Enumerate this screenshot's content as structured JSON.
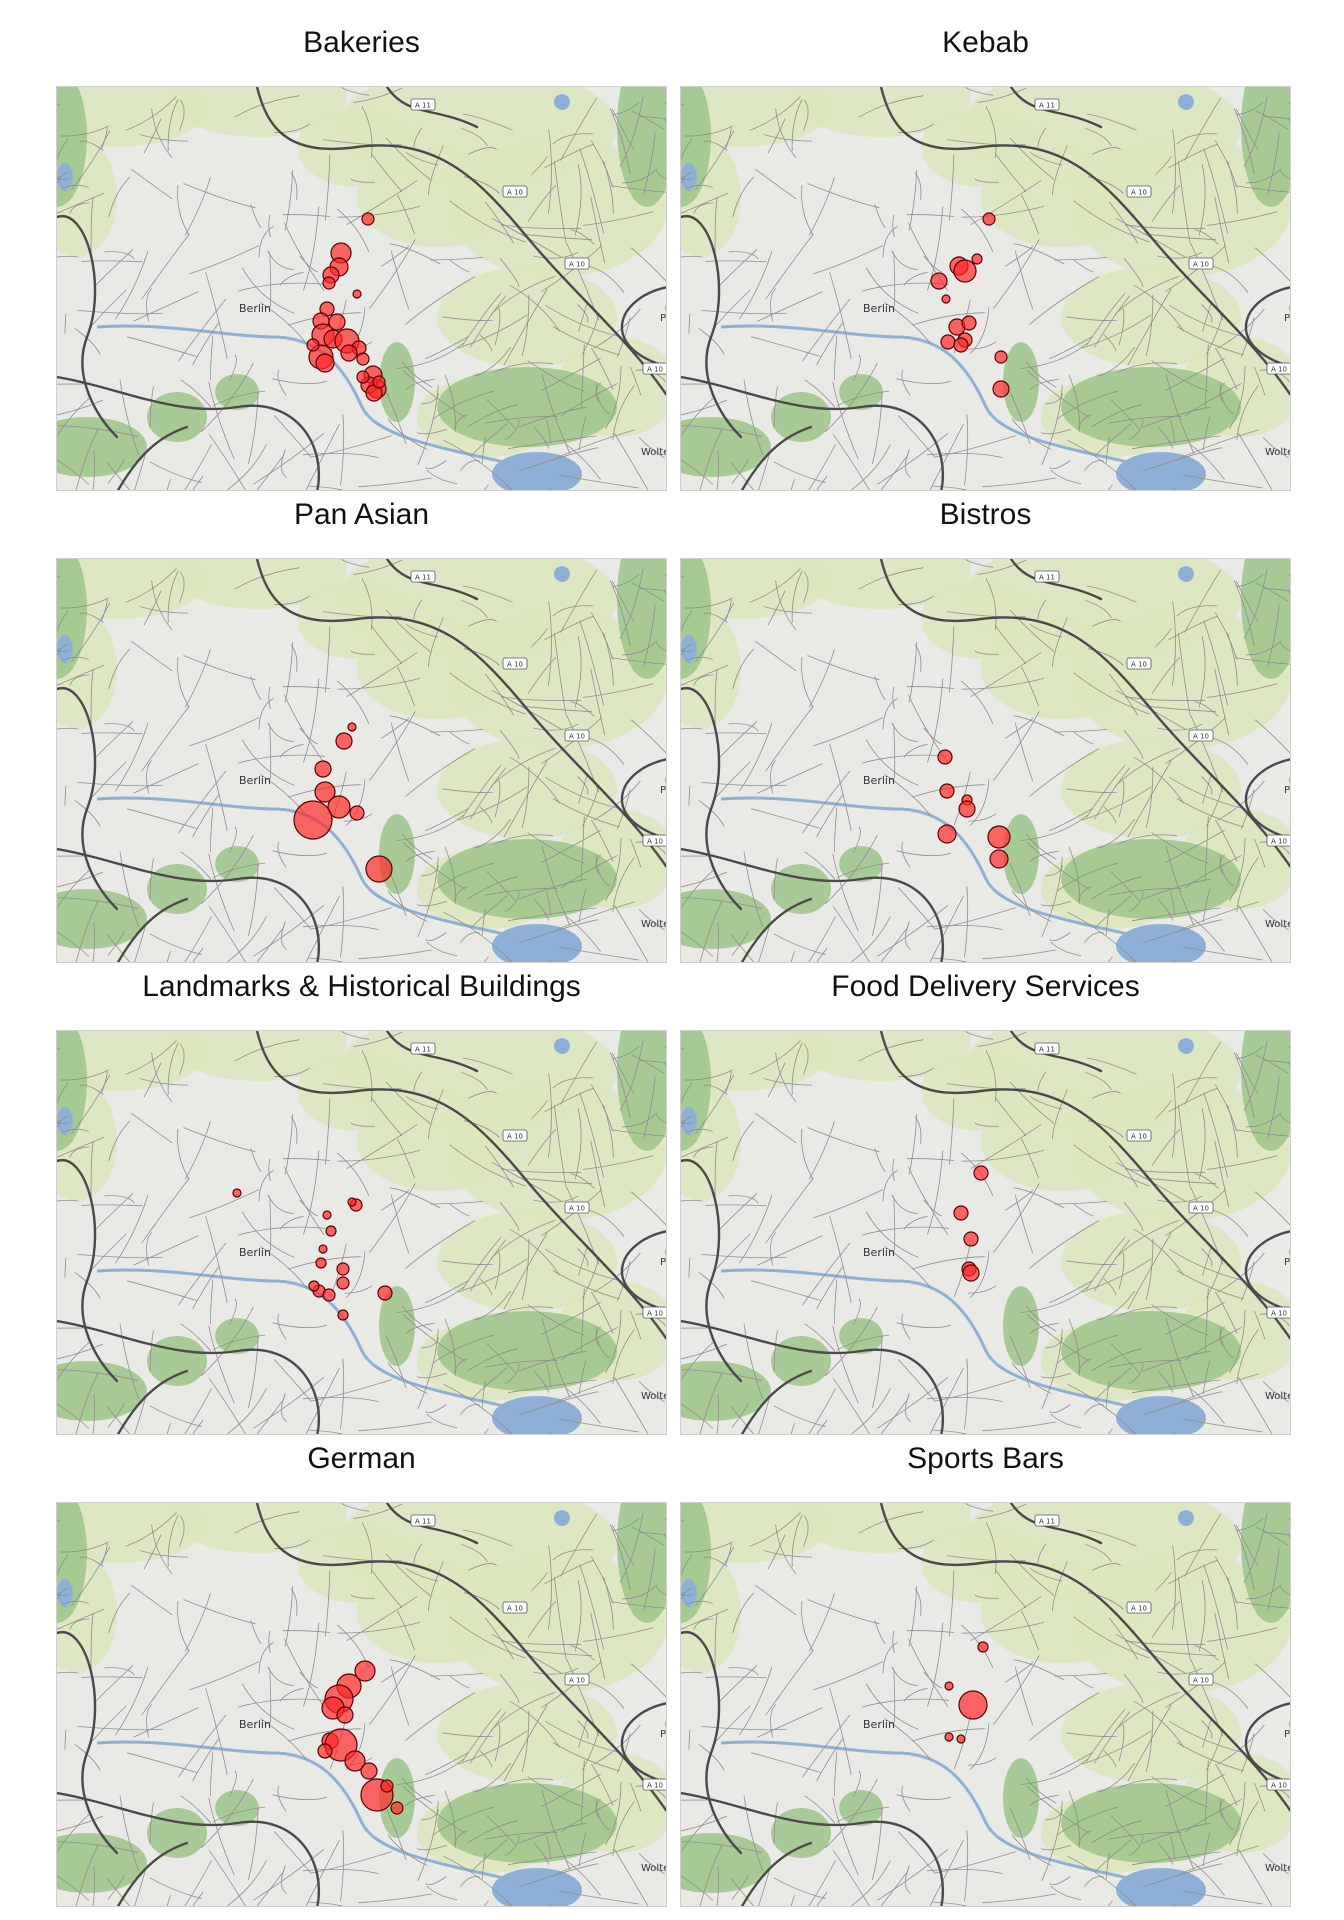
{
  "map_labels": {
    "city": "Berlin",
    "road_a11": "A 11",
    "road_a10": "A 10",
    "edge_place": "Wolte",
    "edge_p": "P"
  },
  "colors": {
    "marker_fill": "#ff2a2a",
    "marker_stroke": "#5a0000",
    "water": "#8fb0d6",
    "forest": "#9cc488",
    "farmland": "#dde7bf",
    "road": "#4a4a4a",
    "background": "#e9e9e6"
  },
  "panels": [
    {
      "title": "Bakeries"
    },
    {
      "title": "Kebab"
    },
    {
      "title": "Pan Asian"
    },
    {
      "title": "Bistros"
    },
    {
      "title": "Landmarks & Historical Buildings"
    },
    {
      "title": "Food Delivery Services"
    },
    {
      "title": "German"
    },
    {
      "title": "Sports Bars"
    }
  ]
}
